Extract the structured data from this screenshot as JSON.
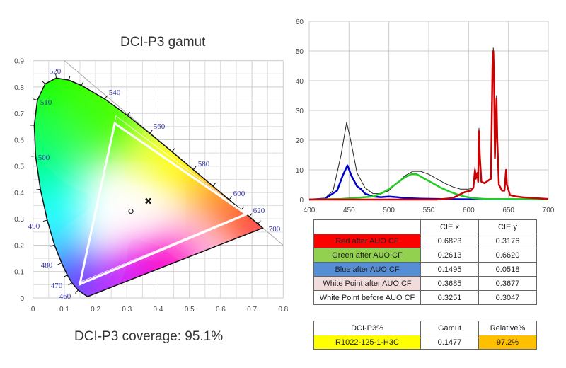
{
  "chart_data": [
    {
      "type": "scatter",
      "title": "DCI-P3 gamut",
      "footer": "DCI-P3 coverage: 95.1%",
      "xlim": [
        0,
        0.8
      ],
      "ylim": [
        0,
        0.9
      ],
      "x_ticks": [
        "0",
        "0.1",
        "0.2",
        "0.3",
        "0.4",
        "0.5",
        "0.6",
        "0.7",
        "0.8"
      ],
      "y_ticks": [
        "0",
        "0.1",
        "0.2",
        "0.3",
        "0.4",
        "0.5",
        "0.6",
        "0.7",
        "0.8",
        "0.9"
      ],
      "grid": true,
      "spectral_locus": [
        [
          380,
          0.1741,
          0.005
        ],
        [
          460,
          0.144,
          0.0297
        ],
        [
          470,
          0.1241,
          0.0578
        ],
        [
          475,
          0.1096,
          0.0868
        ],
        [
          480,
          0.0913,
          0.1327
        ],
        [
          485,
          0.0687,
          0.2007
        ],
        [
          490,
          0.0454,
          0.295
        ],
        [
          495,
          0.0235,
          0.4127
        ],
        [
          500,
          0.0082,
          0.5384
        ],
        [
          505,
          0.0039,
          0.6548
        ],
        [
          510,
          0.0139,
          0.7502
        ],
        [
          515,
          0.0389,
          0.812
        ],
        [
          520,
          0.0743,
          0.8338
        ],
        [
          525,
          0.1142,
          0.8262
        ],
        [
          530,
          0.1547,
          0.8059
        ],
        [
          540,
          0.2296,
          0.7543
        ],
        [
          550,
          0.3016,
          0.6923
        ],
        [
          560,
          0.3731,
          0.6245
        ],
        [
          570,
          0.4441,
          0.5547
        ],
        [
          580,
          0.5125,
          0.4866
        ],
        [
          590,
          0.5752,
          0.4242
        ],
        [
          600,
          0.627,
          0.3725
        ],
        [
          610,
          0.6658,
          0.334
        ],
        [
          620,
          0.6915,
          0.3083
        ],
        [
          640,
          0.719,
          0.2809
        ],
        [
          700,
          0.7347,
          0.2653
        ]
      ],
      "wavelength_labels": [
        "460",
        "470",
        "480",
        "490",
        "500",
        "510",
        "520",
        "540",
        "560",
        "580",
        "600",
        "620",
        "700"
      ],
      "measured_triangle": [
        [
          0.6823,
          0.3176
        ],
        [
          0.2613,
          0.662
        ],
        [
          0.1495,
          0.0518
        ]
      ],
      "reference_triangle": [
        [
          0.68,
          0.32
        ],
        [
          0.265,
          0.69
        ],
        [
          0.15,
          0.06
        ]
      ],
      "markers": [
        {
          "shape": "cross",
          "x": 0.3685,
          "y": 0.3677
        },
        {
          "shape": "circle",
          "x": 0.313,
          "y": 0.329
        }
      ]
    },
    {
      "type": "line",
      "xlim": [
        400,
        700
      ],
      "ylim": [
        0,
        60
      ],
      "x_ticks": [
        "400",
        "450",
        "500",
        "550",
        "600",
        "650",
        "700"
      ],
      "y_ticks": [
        "0",
        "10",
        "20",
        "30",
        "40",
        "50",
        "60"
      ],
      "grid": true,
      "series": [
        {
          "color": "#222222",
          "points": [
            [
              400,
              0
            ],
            [
              420,
              0.5
            ],
            [
              430,
              3
            ],
            [
              440,
              15
            ],
            [
              447,
              26
            ],
            [
              452,
              20
            ],
            [
              460,
              9
            ],
            [
              470,
              4
            ],
            [
              480,
              2
            ],
            [
              490,
              2
            ],
            [
              500,
              3
            ],
            [
              510,
              5.5
            ],
            [
              520,
              8
            ],
            [
              530,
              9.5
            ],
            [
              540,
              9.5
            ],
            [
              550,
              8.5
            ],
            [
              560,
              7
            ],
            [
              570,
              5.5
            ],
            [
              580,
              4.3
            ],
            [
              590,
              3.5
            ],
            [
              600,
              3.5
            ],
            [
              606,
              4
            ],
            [
              608,
              11
            ],
            [
              609,
              7
            ],
            [
              611,
              9
            ],
            [
              612,
              6
            ],
            [
              613,
              24
            ],
            [
              614,
              15
            ],
            [
              616,
              6
            ],
            [
              620,
              5.5
            ],
            [
              625,
              6.5
            ],
            [
              628,
              7
            ],
            [
              630,
              45
            ],
            [
              631,
              51
            ],
            [
              632,
              40
            ],
            [
              633,
              14
            ],
            [
              635,
              35
            ],
            [
              636,
              20
            ],
            [
              638,
              5
            ],
            [
              642,
              3
            ],
            [
              645,
              3
            ],
            [
              647,
              10
            ],
            [
              648,
              5
            ],
            [
              652,
              1.5
            ],
            [
              660,
              1
            ],
            [
              670,
              0.8
            ],
            [
              700,
              0.2
            ]
          ]
        },
        {
          "color": "#0000cc",
          "points": [
            [
              400,
              0
            ],
            [
              420,
              0.3
            ],
            [
              435,
              3
            ],
            [
              442,
              8
            ],
            [
              448,
              11.5
            ],
            [
              453,
              8
            ],
            [
              460,
              4.5
            ],
            [
              465,
              3.5
            ],
            [
              470,
              2
            ],
            [
              480,
              1
            ],
            [
              490,
              0.8
            ],
            [
              500,
              1
            ],
            [
              510,
              0.8
            ],
            [
              520,
              0.5
            ],
            [
              540,
              0.3
            ],
            [
              560,
              0.2
            ],
            [
              600,
              0.1
            ],
            [
              700,
              0.1
            ]
          ]
        },
        {
          "color": "#22cc22",
          "points": [
            [
              400,
              0
            ],
            [
              440,
              0.2
            ],
            [
              480,
              1
            ],
            [
              490,
              2
            ],
            [
              500,
              3.5
            ],
            [
              510,
              5.5
            ],
            [
              520,
              7.5
            ],
            [
              528,
              8.5
            ],
            [
              535,
              8.5
            ],
            [
              545,
              7
            ],
            [
              555,
              5.5
            ],
            [
              565,
              4
            ],
            [
              575,
              2.8
            ],
            [
              585,
              1.8
            ],
            [
              595,
              1
            ],
            [
              605,
              0.5
            ],
            [
              620,
              0.2
            ],
            [
              700,
              0.1
            ]
          ]
        },
        {
          "color": "#cc0000",
          "points": [
            [
              400,
              0
            ],
            [
              560,
              0
            ],
            [
              580,
              0.5
            ],
            [
              595,
              2.5
            ],
            [
              603,
              3
            ],
            [
              606,
              4
            ],
            [
              608,
              10
            ],
            [
              609,
              7
            ],
            [
              611,
              9
            ],
            [
              612,
              6
            ],
            [
              613,
              23
            ],
            [
              614,
              15
            ],
            [
              616,
              6
            ],
            [
              620,
              5.5
            ],
            [
              625,
              6.5
            ],
            [
              628,
              7
            ],
            [
              630,
              45
            ],
            [
              631,
              50
            ],
            [
              632,
              40
            ],
            [
              633,
              14
            ],
            [
              635,
              34
            ],
            [
              636,
              20
            ],
            [
              638,
              5
            ],
            [
              642,
              3
            ],
            [
              645,
              3
            ],
            [
              647,
              10
            ],
            [
              648,
              5
            ],
            [
              652,
              1.5
            ],
            [
              660,
              1
            ],
            [
              670,
              0.7
            ],
            [
              700,
              0.2
            ]
          ]
        }
      ]
    }
  ],
  "table1": {
    "headers": [
      "",
      "CIE x",
      "CIE y"
    ],
    "rows": [
      {
        "label": "Red after AUO CF",
        "x": "0.6823",
        "y": "0.3176",
        "bg": "#ff0000"
      },
      {
        "label": "Green after AUO CF",
        "x": "0.2613",
        "y": "0.6620",
        "bg": "#92d050"
      },
      {
        "label": "Blue after AUO CF",
        "x": "0.1495",
        "y": "0.0518",
        "bg": "#558ed5"
      },
      {
        "label": "White Point after AUO CF",
        "x": "0.3685",
        "y": "0.3677",
        "bg": "#f2dcdb"
      },
      {
        "label": "White Point before AUO CF",
        "x": "0.3251",
        "y": "0.3047",
        "bg": "#ffffff"
      }
    ]
  },
  "table2": {
    "headers": [
      "DCI-P3%",
      "Gamut",
      "Relative%"
    ],
    "row": {
      "label": "R1022-125-1-H3C",
      "gamut": "0.1477",
      "relative": "97.2%",
      "label_bg": "#ffff00",
      "relative_bg": "#ffc000"
    }
  }
}
